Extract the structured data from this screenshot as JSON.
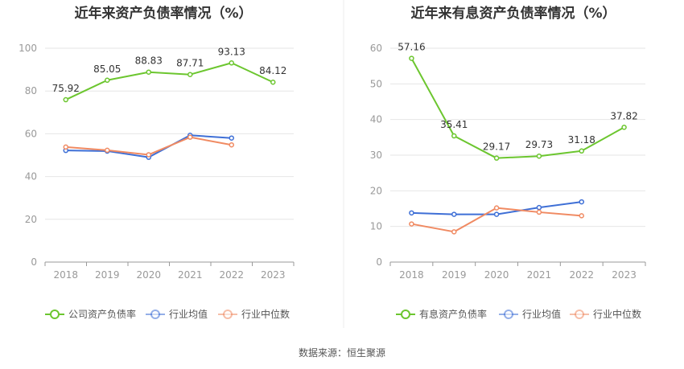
{
  "source_label": "数据来源：恒生聚源",
  "colors": {
    "green": "#6cc62f",
    "blue": "#3e6fd6",
    "orange": "#f08a62",
    "grid": "#e6e6e6",
    "axis": "#999999"
  },
  "chart_data": [
    {
      "type": "line",
      "title": "近年来资产负债率情况（%）",
      "categories": [
        "2018",
        "2019",
        "2020",
        "2021",
        "2022",
        "2023"
      ],
      "ylim": [
        0,
        100
      ],
      "yticks": [
        0,
        20,
        40,
        60,
        80,
        100
      ],
      "grid": true,
      "legend_position": "bottom",
      "series": [
        {
          "name": "公司资产负债率",
          "color": "#6cc62f",
          "values": [
            75.92,
            85.05,
            88.83,
            87.71,
            93.13,
            84.12
          ],
          "labels": [
            "75.92",
            "85.05",
            "88.83",
            "87.71",
            "93.13",
            "84.12"
          ]
        },
        {
          "name": "行业均值",
          "color": "#3e6fd6",
          "values": [
            52.2,
            51.9,
            49.0,
            59.3,
            58.0,
            null
          ]
        },
        {
          "name": "行业中位数",
          "color": "#f08a62",
          "values": [
            53.8,
            52.3,
            50.2,
            58.4,
            54.8,
            null
          ]
        }
      ]
    },
    {
      "type": "line",
      "title": "近年来有息资产负债率情况（%）",
      "categories": [
        "2018",
        "2019",
        "2020",
        "2021",
        "2022",
        "2023"
      ],
      "ylim": [
        0,
        60
      ],
      "yticks": [
        0,
        10,
        20,
        30,
        40,
        50,
        60
      ],
      "grid": true,
      "legend_position": "bottom",
      "series": [
        {
          "name": "有息资产负债率",
          "color": "#6cc62f",
          "values": [
            57.16,
            35.41,
            29.17,
            29.73,
            31.18,
            37.82
          ],
          "labels": [
            "57.16",
            "35.41",
            "29.17",
            "29.73",
            "31.18",
            "37.82"
          ]
        },
        {
          "name": "行业均值",
          "color": "#3e6fd6",
          "values": [
            13.8,
            13.4,
            13.4,
            15.3,
            16.9,
            null
          ]
        },
        {
          "name": "行业中位数",
          "color": "#f08a62",
          "values": [
            10.7,
            8.5,
            15.2,
            14.0,
            13.0,
            null
          ]
        }
      ]
    }
  ]
}
